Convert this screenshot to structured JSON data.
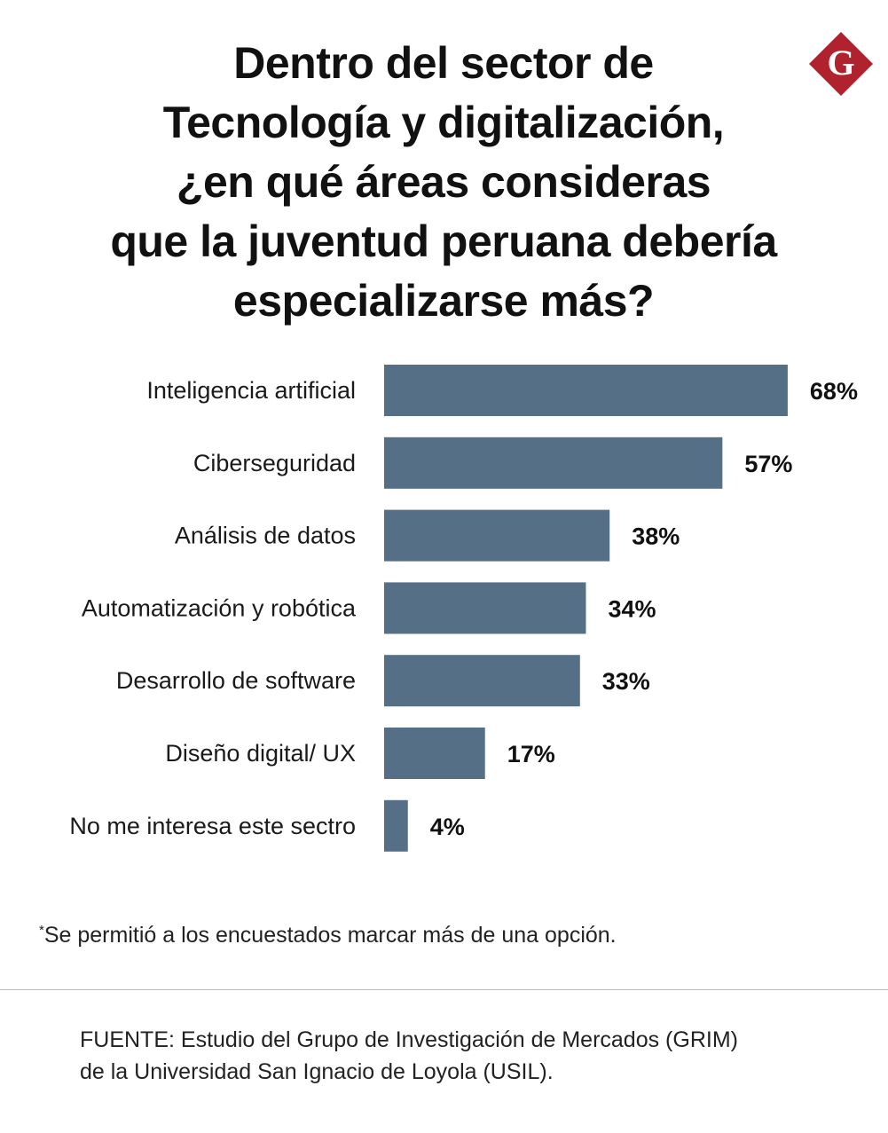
{
  "title": {
    "lines": [
      "Dentro del sector de",
      "Tecnología y digitalización,",
      "¿en qué áreas consideras",
      "que la juventud peruana debería",
      "especializarse más?"
    ]
  },
  "logo": {
    "letter": "G",
    "color": "#b0232e"
  },
  "chart_data": {
    "type": "bar",
    "orientation": "horizontal",
    "title": "Dentro del sector de Tecnología y digitalización, ¿en qué áreas consideras que la juventud peruana debería especializarse más?",
    "categories": [
      "Inteligencia artificial",
      "Ciberseguridad",
      "Análisis de datos",
      "Automatización y robótica",
      "Desarrollo de software",
      "Diseño digital/ UX",
      "No me interesa este sectro"
    ],
    "values": [
      68,
      57,
      38,
      34,
      33,
      17,
      4
    ],
    "value_labels": [
      "68%",
      "57%",
      "38%",
      "34%",
      "33%",
      "17%",
      "4%"
    ],
    "unit": "%",
    "xlim": [
      0,
      100
    ],
    "bar_color": "#546f86",
    "xlabel": "",
    "ylabel": "",
    "grid": false,
    "legend": "none"
  },
  "note": {
    "marker": "*",
    "text": "Se permitió a los encuestados marcar más de una opción."
  },
  "source": {
    "lines": [
      "FUENTE: Estudio del Grupo de Investigación de Mercados (GRIM)",
      "de la Universidad San Ignacio de Loyola (USIL)."
    ]
  }
}
